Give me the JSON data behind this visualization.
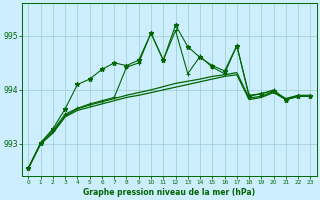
{
  "bg_color": "#cceeff",
  "grid_color": "#99cccc",
  "line_color": "#006600",
  "xlim": [
    -0.5,
    23.5
  ],
  "ylim": [
    992.4,
    995.6
  ],
  "yticks": [
    993,
    994,
    995
  ],
  "xticks": [
    0,
    1,
    2,
    3,
    4,
    5,
    6,
    7,
    8,
    9,
    10,
    11,
    12,
    13,
    14,
    15,
    16,
    17,
    18,
    19,
    20,
    21,
    22,
    23
  ],
  "xlabel": "Graphe pression niveau de la mer (hPa)",
  "series_smooth1": [
    992.55,
    993.0,
    993.2,
    993.5,
    993.62,
    993.68,
    993.74,
    993.8,
    993.86,
    993.9,
    993.95,
    994.0,
    994.05,
    994.1,
    994.15,
    994.2,
    994.25,
    994.28,
    993.82,
    993.86,
    993.95,
    993.82,
    993.88,
    993.88
  ],
  "series_smooth2": [
    992.55,
    993.0,
    993.22,
    993.52,
    993.65,
    993.72,
    993.78,
    993.84,
    993.9,
    993.95,
    994.0,
    994.06,
    994.12,
    994.16,
    994.2,
    994.25,
    994.28,
    994.32,
    993.85,
    993.88,
    993.97,
    993.84,
    993.9,
    993.9
  ],
  "series_plus": [
    992.55,
    993.02,
    993.25,
    993.55,
    993.66,
    993.74,
    993.8,
    993.86,
    994.42,
    994.5,
    995.05,
    994.55,
    995.1,
    994.3,
    994.62,
    994.42,
    994.3,
    994.82,
    993.9,
    993.93,
    994.0,
    993.82,
    993.88,
    993.88
  ],
  "series_star": [
    992.55,
    993.02,
    993.28,
    993.65,
    994.1,
    994.2,
    994.38,
    994.5,
    994.45,
    994.55,
    995.05,
    994.55,
    995.2,
    994.8,
    994.6,
    994.45,
    994.35,
    994.82,
    993.88,
    993.93,
    993.98,
    993.82,
    993.88,
    993.88
  ]
}
